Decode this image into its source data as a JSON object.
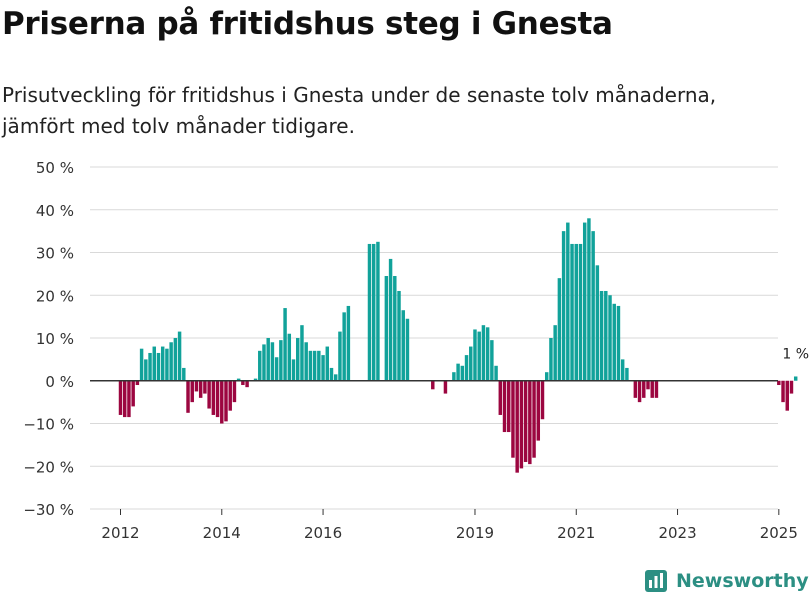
{
  "title": "Priserna på fritidshus steg i Gnesta",
  "subtitle": "Prisutveckling för fritidshus i Gnesta under de senaste tolv månaderna, jämfört med tolv månader tidigare.",
  "brand": {
    "name": "Newsworthy"
  },
  "colors": {
    "positive": "#11a29a",
    "negative": "#9c0640",
    "grid": "#d9d9d9",
    "zero": "#333333",
    "label": "#333333",
    "brand": "#2c8f83"
  },
  "chart_data": {
    "type": "bar",
    "title": "Priserna på fritidshus steg i Gnesta",
    "xlabel": "",
    "ylabel": "",
    "ylim": [
      -30,
      50
    ],
    "y_ticks": [
      50,
      40,
      30,
      20,
      10,
      0,
      -10,
      -20,
      -30
    ],
    "y_tick_labels": [
      "50 %",
      "40 %",
      "30 %",
      "20 %",
      "10 %",
      "0 %",
      "−10 %",
      "−20 %",
      "−30 %"
    ],
    "x_ticks": [
      2012,
      2014,
      2016,
      2019,
      2021,
      2023,
      2025
    ],
    "x_tick_labels": [
      "2012",
      "2014",
      "2016",
      "2019",
      "2021",
      "2023",
      "2025"
    ],
    "x_start": 2012,
    "months_per_year": 12,
    "values": [
      -8,
      -8.5,
      -8.5,
      -6,
      -1,
      7.5,
      5,
      6.5,
      8,
      6.5,
      8,
      7.5,
      9,
      10,
      11.5,
      3,
      -7.5,
      -5,
      -2.5,
      -4,
      -3,
      -6.5,
      -8,
      -8.5,
      -10,
      -9.5,
      -7,
      -5,
      0.5,
      -1,
      -1.5,
      0,
      0.5,
      7,
      8.5,
      10,
      9,
      5.5,
      9.5,
      17,
      11,
      5,
      10,
      13,
      9,
      7,
      7,
      7,
      6,
      8,
      3,
      1.5,
      11.5,
      16,
      17.5,
      null,
      null,
      null,
      null,
      32,
      32,
      32.5,
      null,
      24.5,
      28.5,
      24.5,
      21,
      16.5,
      14.5,
      null,
      null,
      null,
      null,
      null,
      -2,
      null,
      null,
      -3,
      null,
      2,
      4,
      3.5,
      6,
      8,
      12,
      11.5,
      13,
      12.5,
      9.5,
      3.5,
      -8,
      -12,
      -12,
      -18,
      -21.5,
      -20.5,
      -19,
      -19.5,
      -18,
      -14,
      -9,
      2,
      10,
      13,
      24,
      35,
      37,
      32,
      32,
      32,
      37,
      38,
      35,
      27,
      21,
      21,
      20,
      18,
      17.5,
      5,
      3,
      null,
      -4,
      -5,
      -4,
      -2,
      -4,
      -4,
      null,
      null,
      null,
      null,
      null,
      null,
      null,
      null,
      null,
      null,
      null,
      null,
      null,
      null,
      null,
      null,
      null,
      null,
      null,
      null,
      null,
      null,
      null,
      null,
      null,
      null,
      null,
      null,
      -1,
      -5,
      -7,
      -3,
      1
    ],
    "annotations": [
      {
        "text": "1 %",
        "index": -1
      }
    ]
  }
}
